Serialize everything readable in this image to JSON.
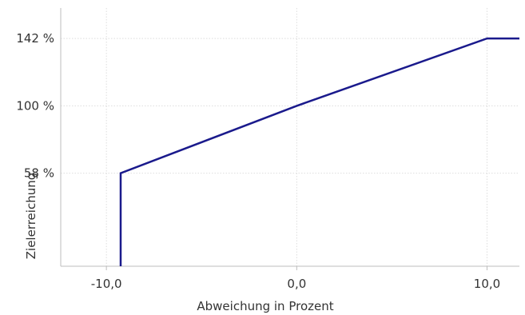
{
  "chart_data": {
    "type": "line",
    "xlabel": "Abweichung in Prozent",
    "ylabel": "Zielerreichung",
    "x_ticks": [
      {
        "value": -10,
        "label": "-10,0"
      },
      {
        "value": 0,
        "label": "0,0"
      },
      {
        "value": 10,
        "label": "10,0"
      }
    ],
    "y_ticks": [
      {
        "value": 58,
        "label": "58 %"
      },
      {
        "value": 100,
        "label": "100 %"
      },
      {
        "value": 142,
        "label": "142 %"
      }
    ],
    "xlim": [
      -12.4,
      11.7
    ],
    "ylim": [
      0,
      161
    ],
    "grid": true,
    "series": [
      {
        "color": "#1a1a8c",
        "points": [
          {
            "x": -9.25,
            "y": 0
          },
          {
            "x": -9.25,
            "y": 58
          },
          {
            "x": 0,
            "y": 100
          },
          {
            "x": 10,
            "y": 142
          },
          {
            "x": 11.7,
            "y": 142
          }
        ]
      }
    ],
    "axis_color": "#bdbdbd",
    "grid_color": "#dddddd"
  }
}
